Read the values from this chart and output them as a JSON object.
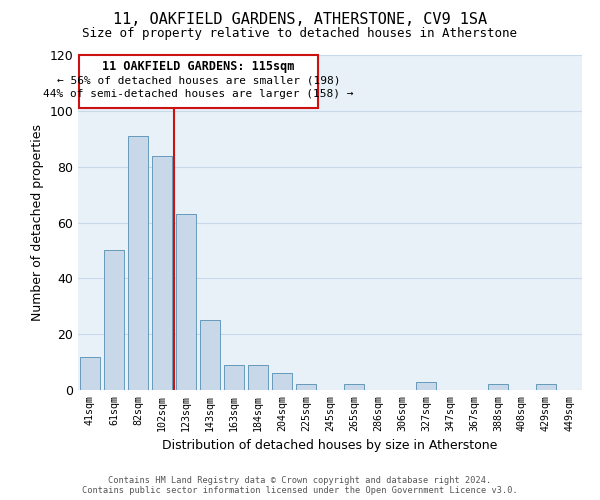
{
  "title": "11, OAKFIELD GARDENS, ATHERSTONE, CV9 1SA",
  "subtitle": "Size of property relative to detached houses in Atherstone",
  "xlabel": "Distribution of detached houses by size in Atherstone",
  "ylabel": "Number of detached properties",
  "bin_labels": [
    "41sqm",
    "61sqm",
    "82sqm",
    "102sqm",
    "123sqm",
    "143sqm",
    "163sqm",
    "184sqm",
    "204sqm",
    "225sqm",
    "245sqm",
    "265sqm",
    "286sqm",
    "306sqm",
    "327sqm",
    "347sqm",
    "367sqm",
    "388sqm",
    "408sqm",
    "429sqm",
    "449sqm"
  ],
  "bar_values": [
    12,
    50,
    91,
    84,
    63,
    25,
    9,
    9,
    6,
    2,
    0,
    2,
    0,
    0,
    3,
    0,
    0,
    2,
    0,
    2,
    0
  ],
  "bar_color": "#c8d8e8",
  "bar_edge_color": "#6699bb",
  "vline_color": "#cc1111",
  "vline_x_index": 3.5,
  "annotation_title": "11 OAKFIELD GARDENS: 115sqm",
  "annotation_line1": "← 56% of detached houses are smaller (198)",
  "annotation_line2": "44% of semi-detached houses are larger (158) →",
  "box_color": "#cc1111",
  "ylim": [
    0,
    120
  ],
  "yticks": [
    0,
    20,
    40,
    60,
    80,
    100,
    120
  ],
  "footer_line1": "Contains HM Land Registry data © Crown copyright and database right 2024.",
  "footer_line2": "Contains public sector information licensed under the Open Government Licence v3.0.",
  "bg_color": "#ffffff",
  "grid_color": "#c8daea",
  "plot_bg_color": "#e8f0f8"
}
